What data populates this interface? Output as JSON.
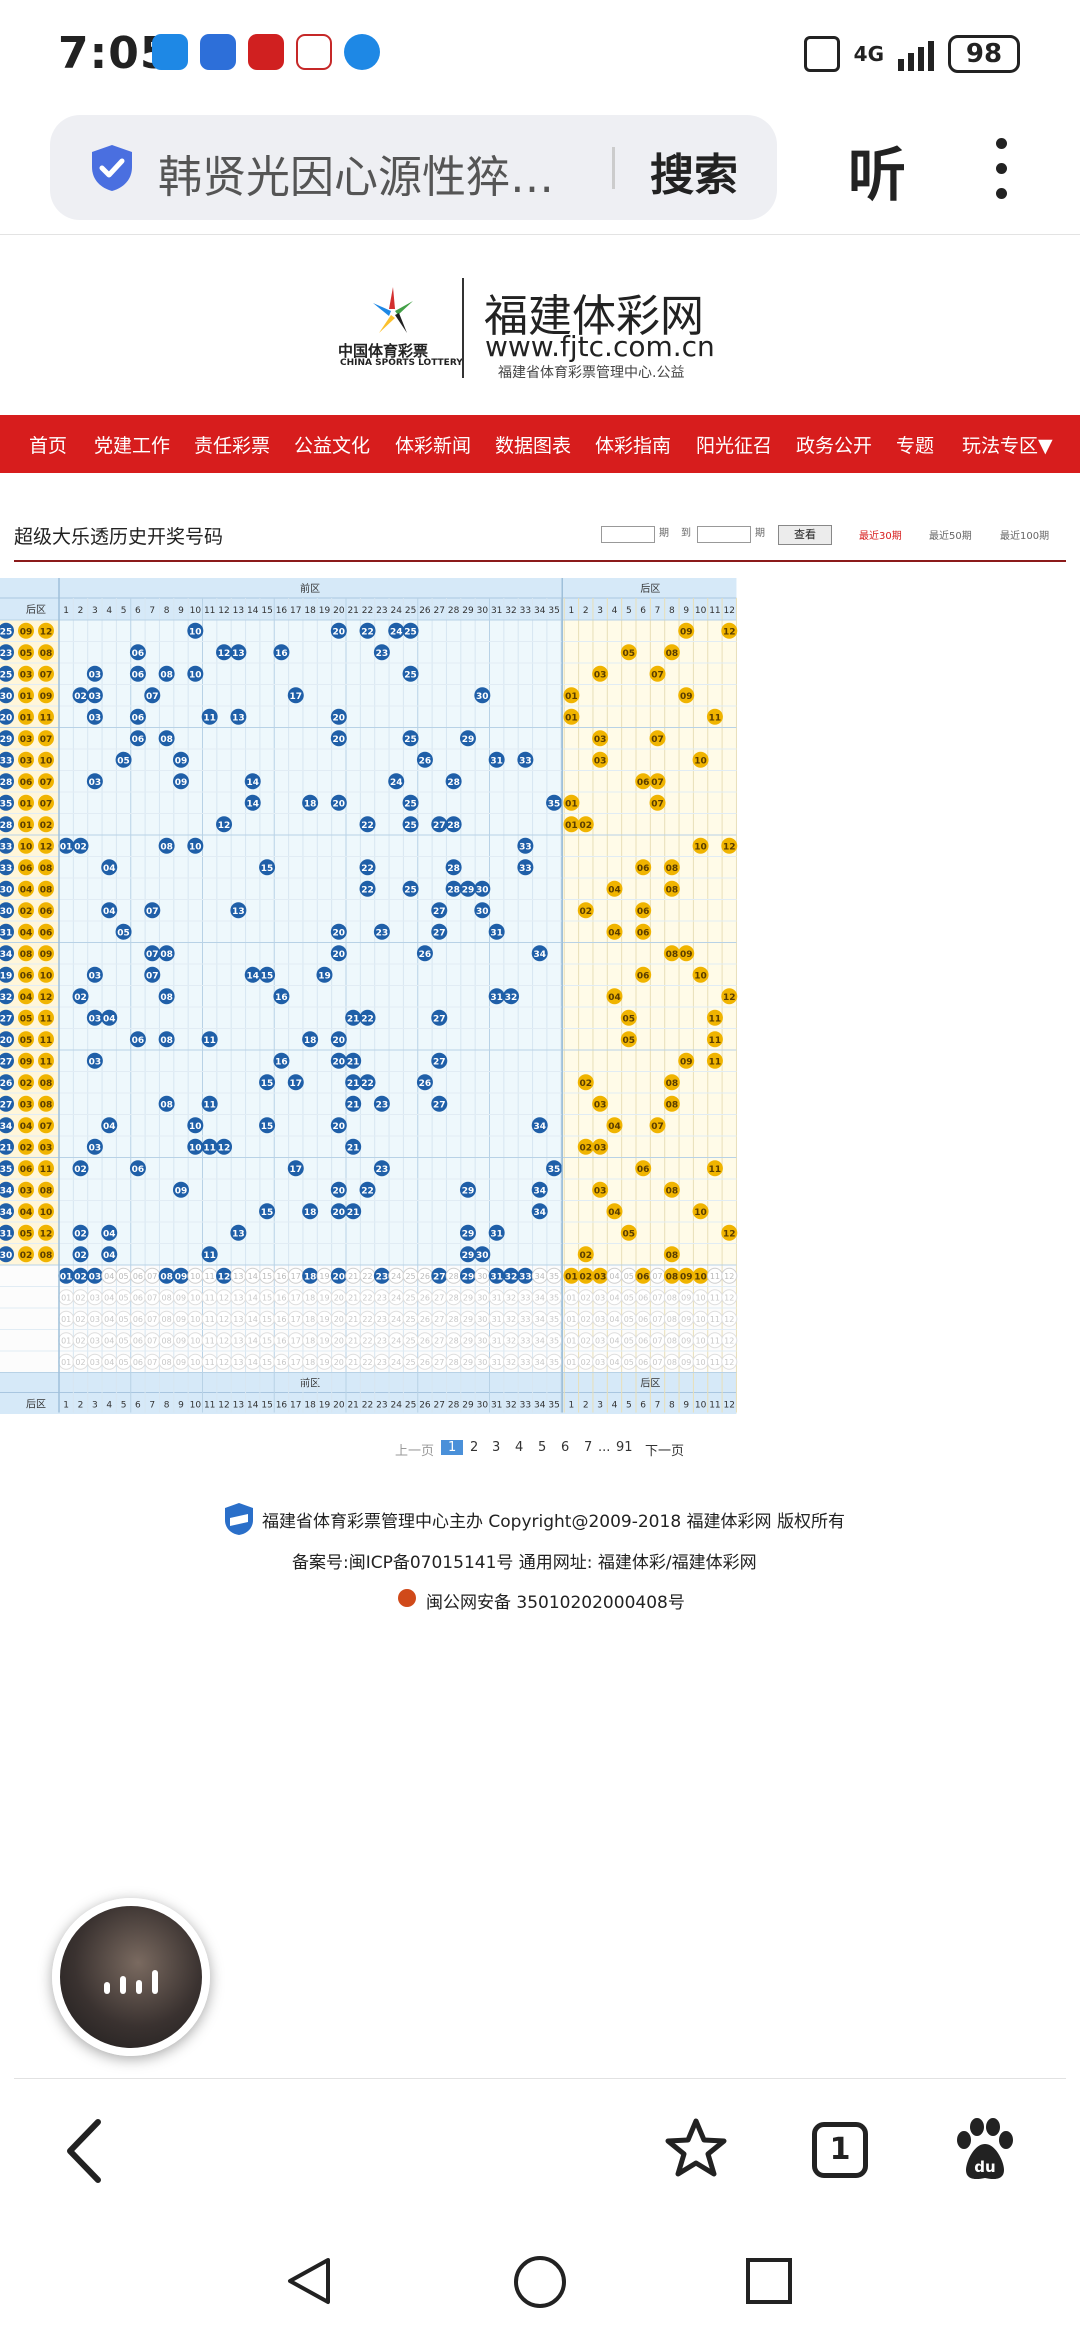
{
  "status_bar": {
    "time": "7:05",
    "network": "4G",
    "battery": "98",
    "app_icons": [
      {
        "name": "message-app-icon",
        "color": "#1e88e5"
      },
      {
        "name": "gov-app-icon",
        "color": "#2d6fd9"
      },
      {
        "name": "finance-app-icon",
        "color": "#d02020"
      },
      {
        "name": "sports-app-icon",
        "color": "#ffffff"
      },
      {
        "name": "browser-app-icon",
        "color": "#1e88e5"
      }
    ]
  },
  "browser": {
    "url_text": "韩贤光因心源性猝…",
    "search_label": "搜索",
    "listen_label": "听"
  },
  "site": {
    "logo_cn": "中国体育彩票",
    "logo_en": "CHINA SPORTS LOTTERY",
    "title": "福建体彩网",
    "url": "www.fjtc.com.cn",
    "subtitle": "福建省体育彩票管理中心.公益"
  },
  "nav": {
    "items": [
      "首页",
      "党建工作",
      "责任彩票",
      "公益文化",
      "体彩新闻",
      "数据图表",
      "体彩指南",
      "阳光征召",
      "政务公开",
      "专题",
      "玩法专区▼"
    ]
  },
  "page": {
    "heading": "超级大乐透历史开奖号码",
    "filter": {
      "period_label_1": "期",
      "to_label": "到",
      "period_label_2": "期",
      "submit": "查看",
      "tabs": [
        "最近30期",
        "最近50期",
        "最近100期"
      ]
    }
  },
  "chart_data": {
    "type": "table",
    "front_zone_label": "前区",
    "back_zone_label": "后区",
    "row_header_label": "后区",
    "front_range": 35,
    "back_range": 12,
    "front_color": "#1f5fa8",
    "back_color": "#f0b400",
    "rows": [
      {
        "front": [
          10,
          20,
          22,
          24,
          25
        ],
        "back": [
          9,
          12
        ]
      },
      {
        "front": [
          6,
          12,
          13,
          16,
          23
        ],
        "back": [
          5,
          8
        ]
      },
      {
        "front": [
          3,
          6,
          8,
          10,
          25
        ],
        "back": [
          3,
          7
        ]
      },
      {
        "front": [
          2,
          3,
          7,
          17,
          30
        ],
        "back": [
          1,
          9
        ]
      },
      {
        "front": [
          3,
          6,
          11,
          13,
          20
        ],
        "back": [
          1,
          11
        ]
      },
      {
        "front": [
          6,
          8,
          20,
          25,
          29
        ],
        "back": [
          3,
          7
        ]
      },
      {
        "front": [
          5,
          9,
          26,
          31,
          33
        ],
        "back": [
          3,
          10
        ]
      },
      {
        "front": [
          3,
          9,
          14,
          24,
          28
        ],
        "back": [
          6,
          7
        ]
      },
      {
        "front": [
          14,
          18,
          20,
          25,
          35
        ],
        "back": [
          1,
          7
        ]
      },
      {
        "front": [
          12,
          22,
          25,
          27,
          28
        ],
        "back": [
          1,
          2
        ]
      },
      {
        "front": [
          1,
          2,
          8,
          10,
          33
        ],
        "back": [
          10,
          12
        ]
      },
      {
        "front": [
          4,
          15,
          22,
          28,
          33
        ],
        "back": [
          6,
          8
        ]
      },
      {
        "front": [
          22,
          25,
          28,
          29,
          30
        ],
        "back": [
          4,
          8
        ]
      },
      {
        "front": [
          4,
          7,
          13,
          27,
          30
        ],
        "back": [
          2,
          6
        ]
      },
      {
        "front": [
          5,
          20,
          23,
          27,
          31
        ],
        "back": [
          4,
          6
        ]
      },
      {
        "front": [
          7,
          8,
          20,
          26,
          34
        ],
        "back": [
          8,
          9
        ]
      },
      {
        "front": [
          3,
          7,
          14,
          15,
          19
        ],
        "back": [
          6,
          10
        ]
      },
      {
        "front": [
          2,
          8,
          16,
          31,
          32
        ],
        "back": [
          4,
          12
        ]
      },
      {
        "front": [
          3,
          4,
          21,
          22,
          27
        ],
        "back": [
          5,
          11
        ]
      },
      {
        "front": [
          6,
          8,
          11,
          18,
          20
        ],
        "back": [
          5,
          11
        ]
      },
      {
        "front": [
          3,
          16,
          20,
          21,
          27
        ],
        "back": [
          9,
          11
        ]
      },
      {
        "front": [
          15,
          17,
          21,
          22,
          26
        ],
        "back": [
          2,
          8
        ]
      },
      {
        "front": [
          8,
          11,
          21,
          23,
          27
        ],
        "back": [
          3,
          8
        ]
      },
      {
        "front": [
          4,
          10,
          15,
          20,
          34
        ],
        "back": [
          4,
          7
        ]
      },
      {
        "front": [
          3,
          10,
          11,
          12,
          21
        ],
        "back": [
          2,
          3
        ]
      },
      {
        "front": [
          2,
          6,
          17,
          23,
          35
        ],
        "back": [
          6,
          11
        ]
      },
      {
        "front": [
          9,
          20,
          22,
          29,
          34
        ],
        "back": [
          3,
          8
        ]
      },
      {
        "front": [
          15,
          18,
          20,
          21,
          34
        ],
        "back": [
          4,
          10
        ]
      },
      {
        "front": [
          2,
          4,
          13,
          29,
          31
        ],
        "back": [
          5,
          12
        ]
      },
      {
        "front": [
          2,
          4,
          11,
          29,
          30
        ],
        "back": [
          2,
          8
        ]
      }
    ],
    "selection_row": {
      "front": [
        1,
        2,
        3,
        8,
        9,
        12,
        18,
        20,
        23,
        27,
        29,
        31,
        32,
        33
      ],
      "back": [
        1,
        2,
        3,
        6,
        8,
        9,
        10
      ]
    },
    "empty_rows": 4
  },
  "pagination": {
    "prev": "上一页",
    "pages": [
      "1",
      "2",
      "3",
      "4",
      "5",
      "6",
      "7"
    ],
    "ellipsis": "...",
    "last": "91",
    "next": "下一页",
    "current": "1"
  },
  "footer": {
    "line1": "福建省体育彩票管理中心主办 Copyright@2009-2018 福建体彩网 版权所有",
    "line2": "备案号:闽ICP备07015141号    通用网址:  福建体彩/福建体彩网",
    "line3": "闽公网安备 35010202000408号"
  },
  "bottom_bar": {
    "tab_count": "1"
  }
}
